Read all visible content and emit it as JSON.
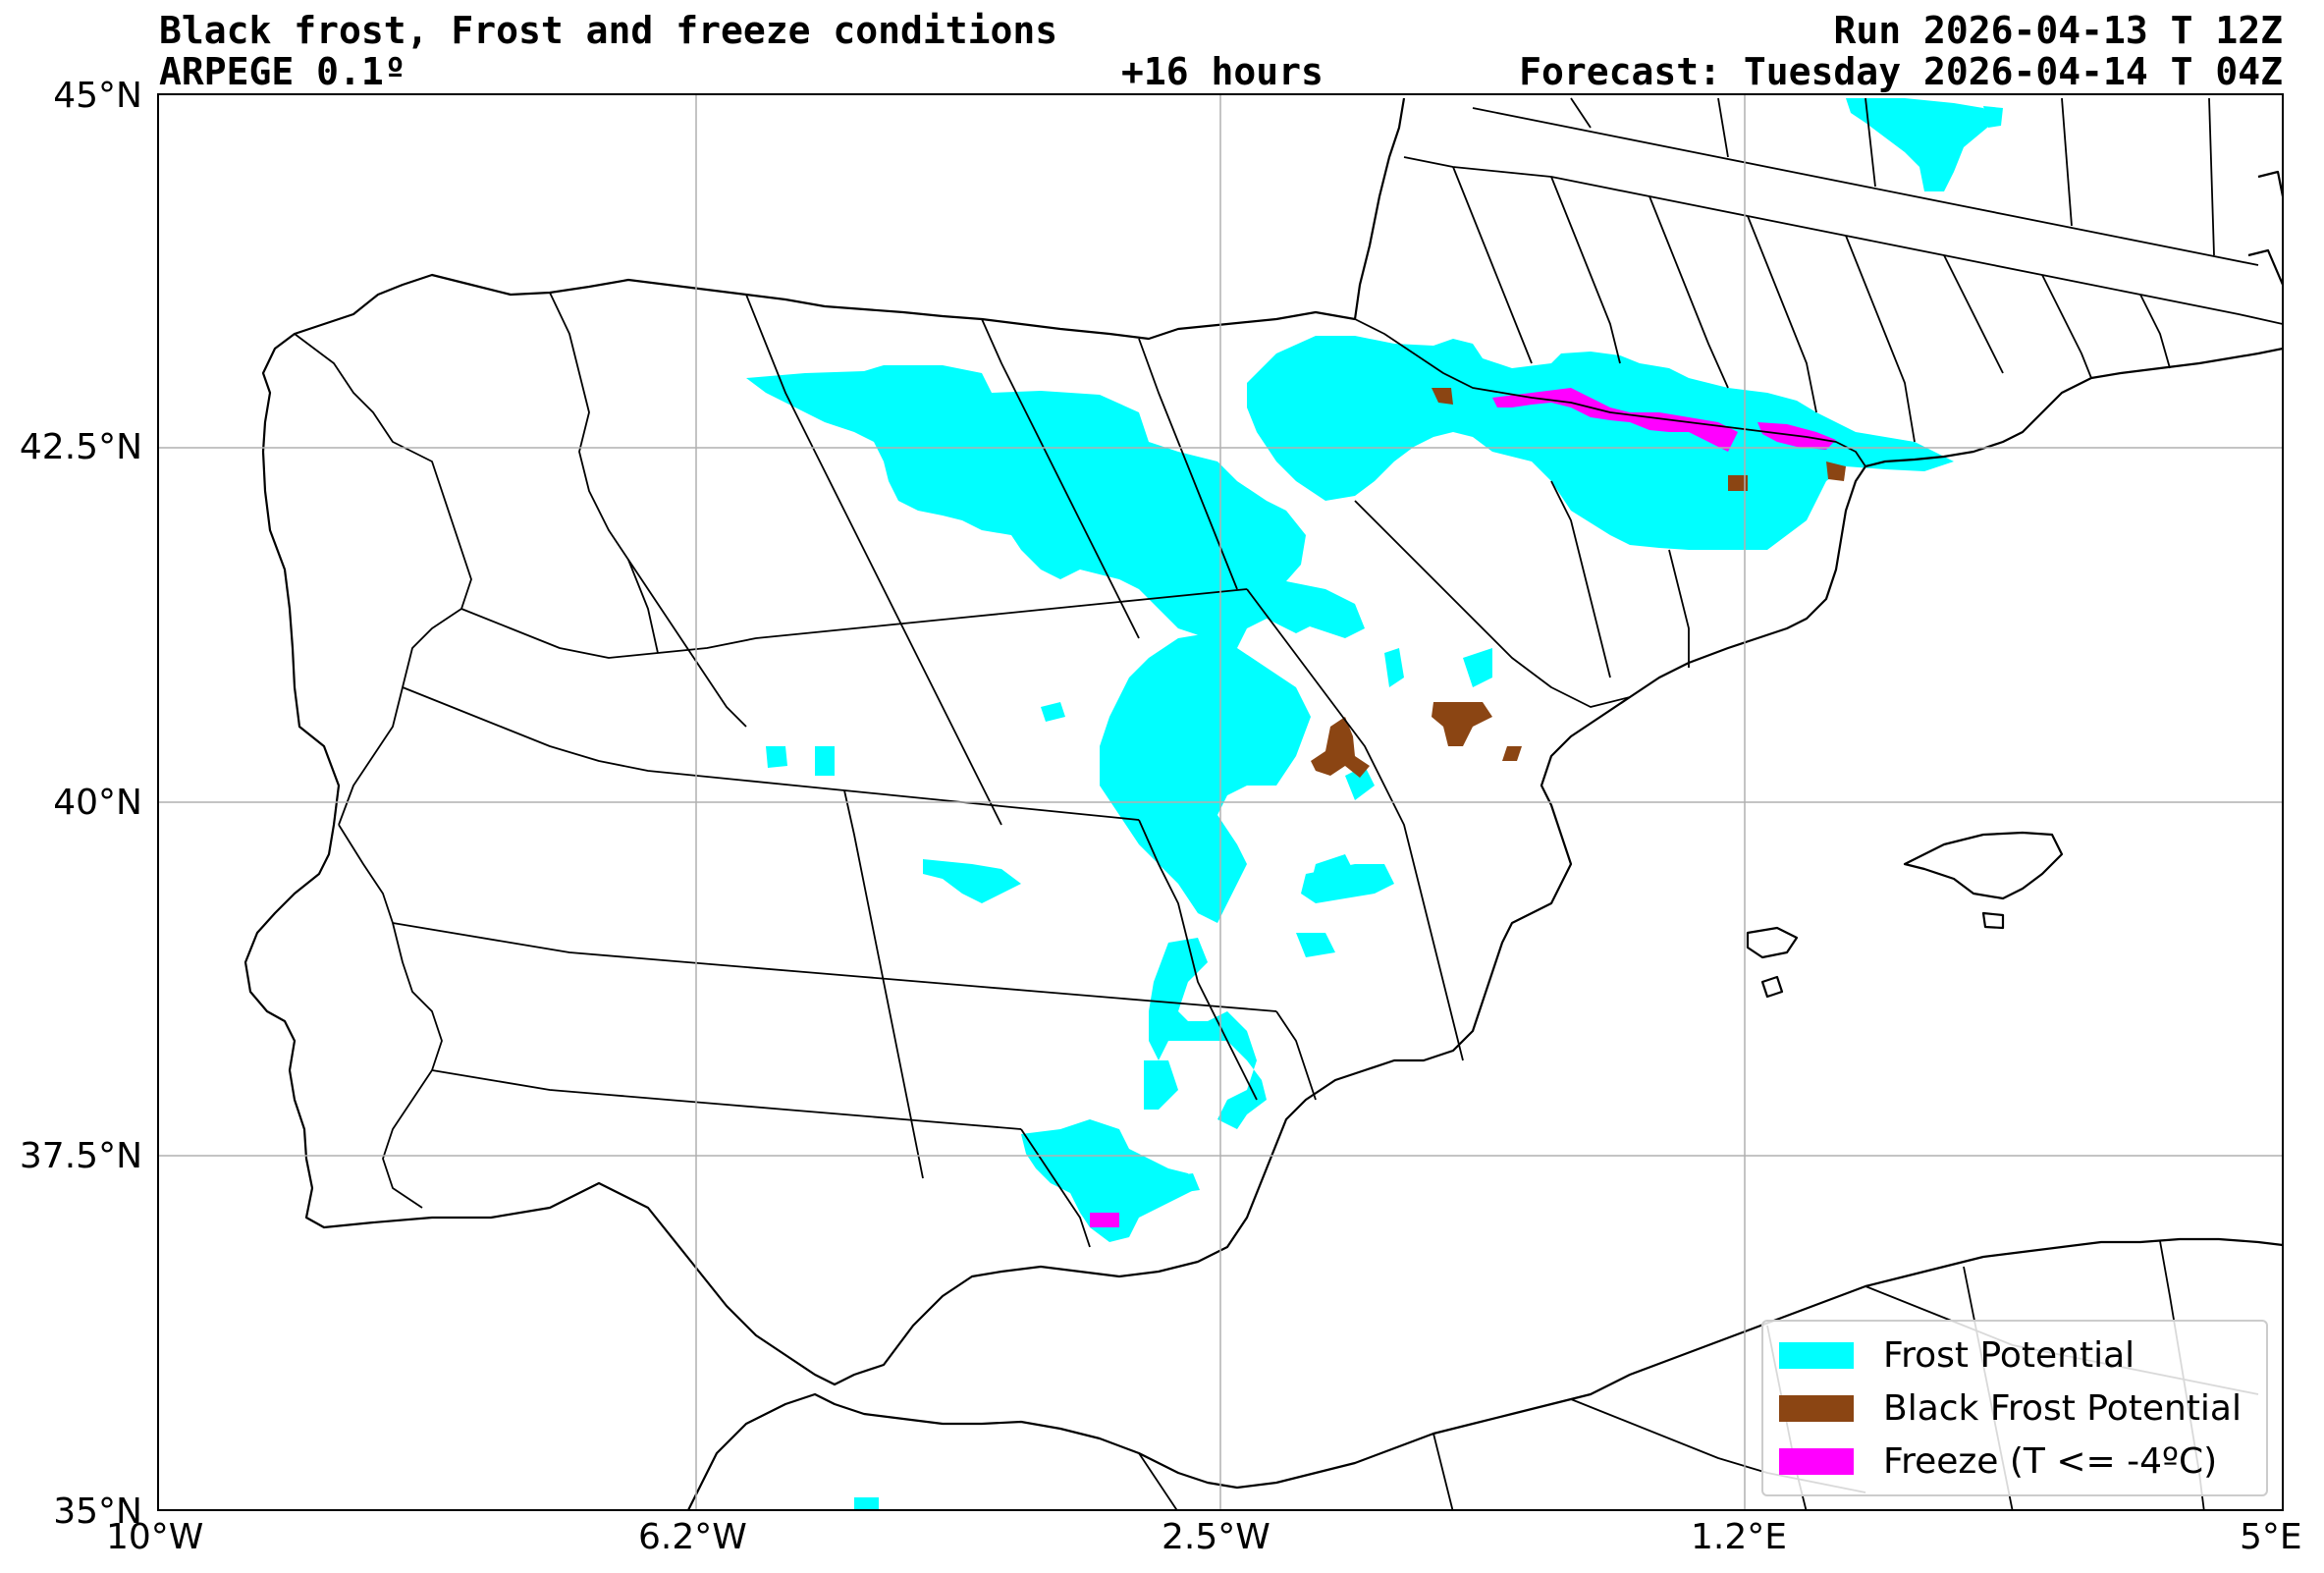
{
  "header": {
    "title": "Black frost, Frost and freeze conditions",
    "model": "ARPEGE 0.1º",
    "lead": "+16 hours",
    "run": "Run 2026-04-13 T 12Z",
    "forecast": "Forecast: Tuesday 2026-04-14 T 04Z"
  },
  "axes": {
    "lat_labels": [
      "45°N",
      "42.5°N",
      "40°N",
      "37.5°N",
      "35°N"
    ],
    "lon_labels": [
      "10°W",
      "6.2°W",
      "2.5°W",
      "1.2°E",
      "5°E"
    ],
    "lat_range": [
      35,
      45
    ],
    "lon_range": [
      -10,
      5
    ],
    "gridlines": true
  },
  "legend": {
    "placement": "bottom-right",
    "items": [
      {
        "label": "Frost Potential",
        "color": "#00ffff"
      },
      {
        "label": "Black Frost Potential",
        "color": "#8b4513"
      },
      {
        "label": "Freeze (T <= -4ºC)",
        "color": "#ff00ff"
      }
    ]
  },
  "colors": {
    "frost": "#00ffff",
    "black_frost": "#8b4513",
    "freeze": "#ff00ff",
    "coastline": "#000000",
    "grid": "#b0b0b0"
  }
}
